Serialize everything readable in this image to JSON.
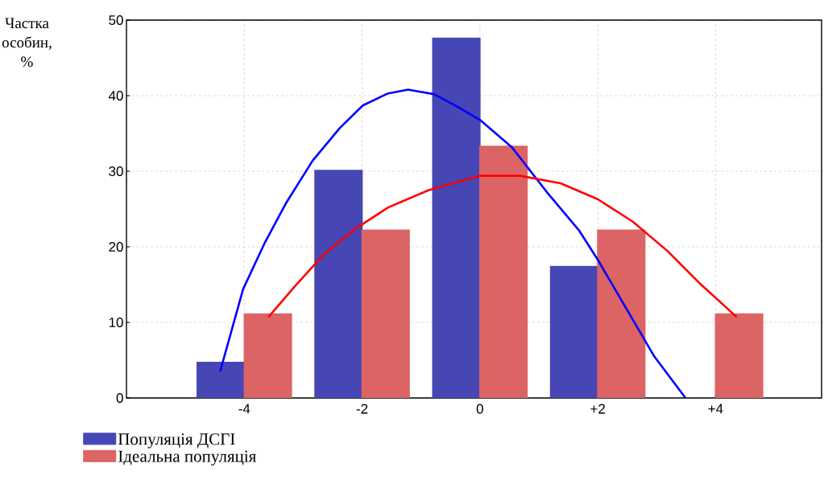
{
  "chart_data": {
    "type": "bar",
    "ylabel": "Частка особин, %",
    "x": [
      -4,
      -2,
      0,
      2,
      4
    ],
    "xlim": [
      -6,
      5.8
    ],
    "ylim": [
      0,
      50
    ],
    "xticks": [
      -4,
      -2,
      0,
      {
        "value": 2,
        "label": "+2"
      },
      {
        "value": 4,
        "label": "+4"
      }
    ],
    "yticks": [
      0,
      10,
      20,
      30,
      40,
      50
    ],
    "grid": true,
    "legend": "bottom left",
    "series": [
      {
        "name": "Популяція ДСГІ",
        "color": "#4646b4",
        "values": [
          4.7,
          30.1,
          47.6,
          17.4,
          null
        ]
      },
      {
        "name": "Ідеальна популяція",
        "color": "#dc6464",
        "values": [
          11.1,
          22.2,
          33.3,
          22.2,
          11.1
        ]
      },
      {
        "type": "line",
        "color": "#0000ff",
        "x": [
          -4.41,
          -4.02,
          -3.66,
          -3.29,
          -2.84,
          -2.38,
          -1.99,
          -1.56,
          -1.22,
          -0.78,
          -0.42,
          0,
          0.54,
          1.14,
          1.68,
          2.0,
          2.51,
          2.96,
          3.49
        ],
        "values": [
          3.5,
          14.4,
          20.4,
          25.8,
          31.4,
          35.7,
          38.7,
          40.3,
          40.8,
          40.2,
          38.7,
          36.8,
          33.2,
          27.2,
          22.2,
          18.3,
          11.5,
          5.5,
          0
        ]
      },
      {
        "type": "line",
        "color": "#ff0000",
        "x": [
          -3.59,
          -3.15,
          -2.65,
          -2.11,
          -1.56,
          -0.87,
          0,
          0.68,
          1.37,
          2.0,
          2.6,
          3.19,
          3.74,
          4.36
        ],
        "values": [
          10.7,
          14.7,
          19.0,
          22.4,
          25.2,
          27.5,
          29.4,
          29.4,
          28.4,
          26.3,
          23.3,
          19.4,
          15.1,
          10.7
        ]
      }
    ]
  }
}
